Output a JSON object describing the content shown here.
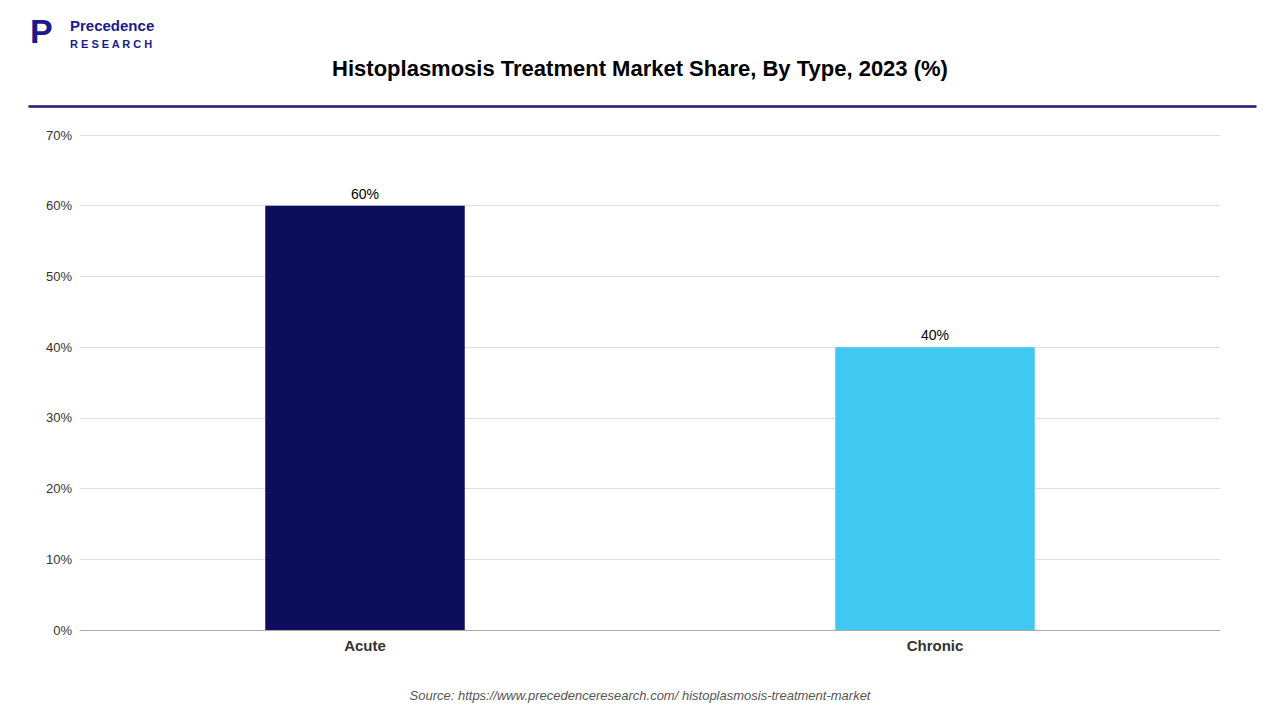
{
  "chart_data": {
    "type": "bar",
    "title": "Histoplasmosis Treatment Market Share, By Type, 2023 (%)",
    "categories": [
      "Acute",
      "Chronic"
    ],
    "values": [
      60,
      40
    ],
    "colors": [
      "#0d0d5e",
      "#40c8f0"
    ],
    "data_labels": true,
    "value_labels": [
      "60%",
      "40%"
    ],
    "ylim": [
      0,
      70
    ],
    "yticks": [
      {
        "value": 0,
        "label": "0%"
      },
      {
        "value": 10,
        "label": "10%"
      },
      {
        "value": 20,
        "label": "20%"
      },
      {
        "value": 30,
        "label": "30%"
      },
      {
        "value": 40,
        "label": "40%"
      },
      {
        "value": 50,
        "label": "50%"
      },
      {
        "value": 60,
        "label": "60%"
      },
      {
        "value": 70,
        "label": "70%"
      }
    ],
    "grid": true,
    "annotations": [
      "Source: https://www.precedenceresearch.com/ histoplasmosis-treatment-market",
      "Precedence",
      "R E S E A R C H",
      "P"
    ]
  }
}
